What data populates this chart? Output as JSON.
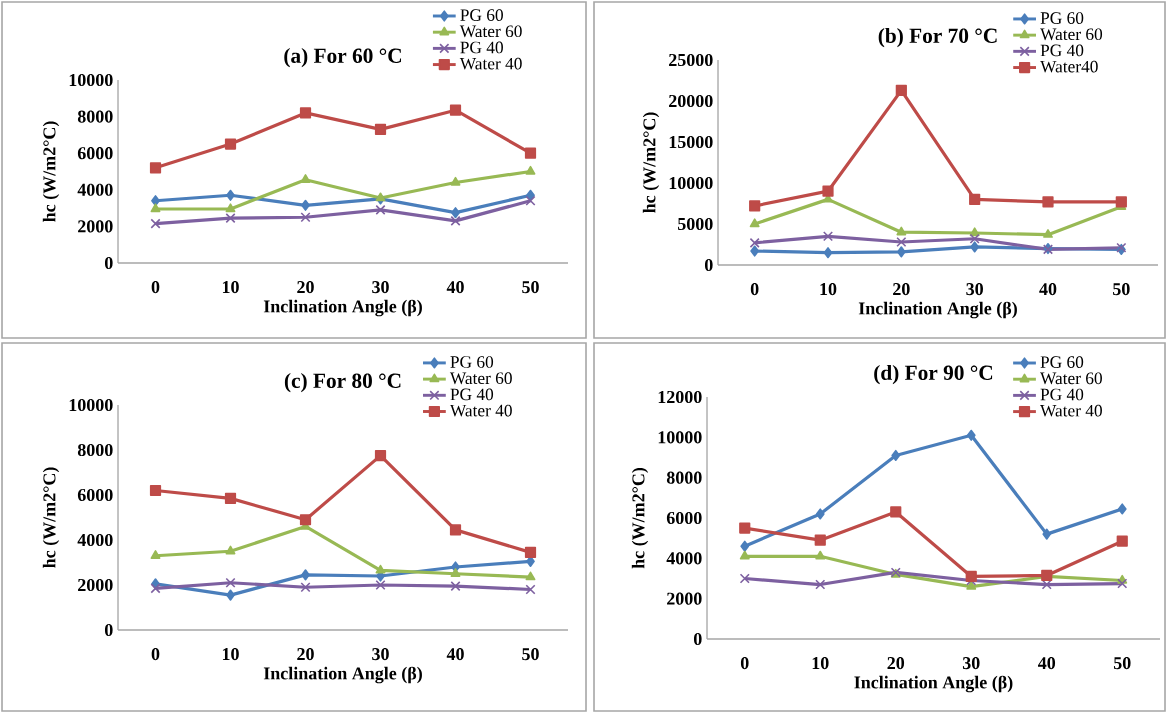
{
  "chart_data": [
    {
      "type": "line",
      "title": "(a) For 60 °C",
      "xlabel": "Inclination Angle  (β)",
      "ylabel": "hc (W/m2°C)",
      "categories": [
        "0",
        "10",
        "20",
        "30",
        "40",
        "50"
      ],
      "ylim": [
        0,
        10000
      ],
      "yticks": [
        0,
        2000,
        4000,
        6000,
        8000,
        10000
      ],
      "legend": "top right",
      "line_style": "solid",
      "series": [
        {
          "name": "PG 60",
          "color": "#4a7ebb",
          "marker": "diamond",
          "values": [
            3400,
            3700,
            3150,
            3500,
            2750,
            3700
          ]
        },
        {
          "name": "Water 60",
          "color": "#98b954",
          "marker": "triangle",
          "values": [
            2950,
            2950,
            4550,
            3550,
            4400,
            5000
          ]
        },
        {
          "name": "PG 40",
          "color": "#7d60a0",
          "marker": "cross",
          "values": [
            2150,
            2450,
            2500,
            2900,
            2300,
            3400
          ]
        },
        {
          "name": "Water 40",
          "color": "#be4b48",
          "marker": "square",
          "values": [
            5200,
            6500,
            8200,
            7300,
            8350,
            6000
          ]
        }
      ]
    },
    {
      "type": "line",
      "title": "(b) For 70 °C",
      "xlabel": "Inclination Angle  (β)",
      "ylabel": "hc  (W/m2°C)",
      "categories": [
        "0",
        "10",
        "20",
        "30",
        "40",
        "50"
      ],
      "ylim": [
        0,
        25000
      ],
      "yticks": [
        0,
        5000,
        10000,
        15000,
        20000,
        25000
      ],
      "legend": "top right",
      "line_style": "solid",
      "series": [
        {
          "name": "PG 60",
          "color": "#4a7ebb",
          "marker": "diamond",
          "values": [
            1700,
            1500,
            1600,
            2200,
            2000,
            1900
          ]
        },
        {
          "name": "Water 60",
          "color": "#98b954",
          "marker": "triangle",
          "values": [
            5000,
            8000,
            4000,
            3900,
            3700,
            7100
          ]
        },
        {
          "name": "PG 40",
          "color": "#7d60a0",
          "marker": "cross",
          "values": [
            2700,
            3500,
            2800,
            3200,
            1900,
            2100
          ]
        },
        {
          "name": "Water40",
          "color": "#be4b48",
          "marker": "square",
          "values": [
            7200,
            9000,
            21300,
            8000,
            7700,
            7700
          ]
        }
      ]
    },
    {
      "type": "line",
      "title": "(c) For 80 °C",
      "xlabel": "Inclination Angle  (β)",
      "ylabel": "hc  (W/m2°C)",
      "categories": [
        "0",
        "10",
        "20",
        "30",
        "40",
        "50"
      ],
      "ylim": [
        0,
        10000
      ],
      "yticks": [
        0,
        2000,
        4000,
        6000,
        8000,
        10000
      ],
      "legend": "top right",
      "line_style": "solid",
      "series": [
        {
          "name": "PG 60",
          "color": "#4a7ebb",
          "marker": "diamond",
          "values": [
            2050,
            1550,
            2450,
            2400,
            2800,
            3050
          ]
        },
        {
          "name": "Water 60",
          "color": "#98b954",
          "marker": "triangle",
          "values": [
            3300,
            3500,
            4600,
            2650,
            2500,
            2350
          ]
        },
        {
          "name": "PG 40",
          "color": "#7d60a0",
          "marker": "cross",
          "values": [
            1850,
            2100,
            1900,
            2000,
            1950,
            1800
          ]
        },
        {
          "name": "Water 40",
          "color": "#be4b48",
          "marker": "square",
          "values": [
            6200,
            5850,
            4900,
            7750,
            4450,
            3450
          ]
        }
      ]
    },
    {
      "type": "line",
      "title": "(d) For 90 °C",
      "xlabel": "Inclination Angle  (β)",
      "ylabel": "hc (W/m2°C)",
      "categories": [
        "0",
        "10",
        "20",
        "30",
        "40",
        "50"
      ],
      "ylim": [
        0,
        12000
      ],
      "yticks": [
        0,
        2000,
        4000,
        6000,
        8000,
        10000,
        12000
      ],
      "legend": "top right",
      "line_style": "solid",
      "series": [
        {
          "name": "PG 60",
          "color": "#4a7ebb",
          "marker": "diamond",
          "values": [
            4600,
            6200,
            9100,
            10100,
            5200,
            6450
          ]
        },
        {
          "name": "Water 60",
          "color": "#98b954",
          "marker": "triangle",
          "values": [
            4100,
            4100,
            3200,
            2600,
            3100,
            2900
          ]
        },
        {
          "name": "PG 40",
          "color": "#7d60a0",
          "marker": "cross",
          "values": [
            3000,
            2700,
            3300,
            2900,
            2700,
            2750
          ]
        },
        {
          "name": "Water 40",
          "color": "#be4b48",
          "marker": "square",
          "values": [
            5500,
            4900,
            6300,
            3100,
            3150,
            4850
          ]
        }
      ]
    }
  ]
}
